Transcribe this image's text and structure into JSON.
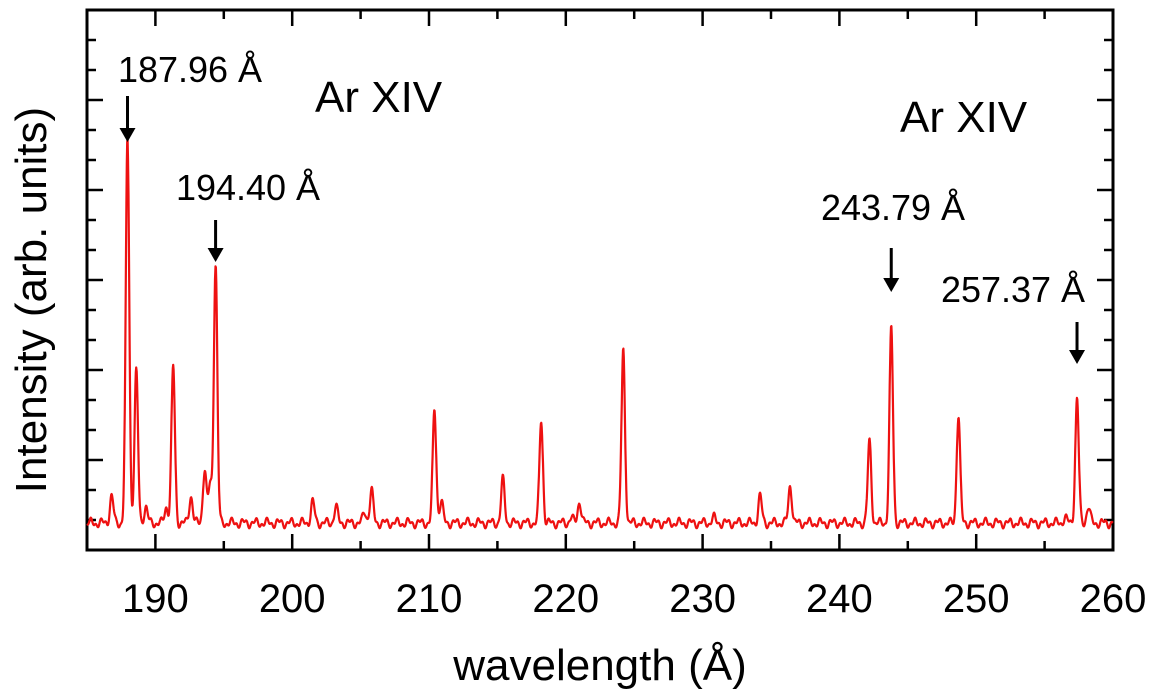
{
  "chart_data": {
    "type": "line",
    "title": "",
    "xlabel": "wavelength (Å)",
    "ylabel": "Intensity (arb. units)",
    "xlim": [
      185,
      260
    ],
    "ylim": [
      0,
      1
    ],
    "x_ticks": [
      190,
      200,
      210,
      220,
      230,
      240,
      250,
      260
    ],
    "x_tick_labels": [
      "190",
      "200",
      "210",
      "220",
      "230",
      "240",
      "250",
      "260"
    ],
    "y_tick_labels_shown": false,
    "grid": false,
    "legend": "none",
    "series": [
      {
        "color": "#ee1111",
        "baseline": 0.05,
        "peaks": [
          {
            "x": 186.8,
            "y": 0.1
          },
          {
            "x": 187.96,
            "y": 0.76
          },
          {
            "x": 188.6,
            "y": 0.33
          },
          {
            "x": 189.3,
            "y": 0.08
          },
          {
            "x": 190.8,
            "y": 0.08
          },
          {
            "x": 191.3,
            "y": 0.34
          },
          {
            "x": 192.6,
            "y": 0.1
          },
          {
            "x": 193.6,
            "y": 0.15
          },
          {
            "x": 194.0,
            "y": 0.12
          },
          {
            "x": 194.4,
            "y": 0.53
          },
          {
            "x": 201.5,
            "y": 0.09
          },
          {
            "x": 203.2,
            "y": 0.08
          },
          {
            "x": 205.3,
            "y": 0.07
          },
          {
            "x": 205.8,
            "y": 0.11
          },
          {
            "x": 210.4,
            "y": 0.26
          },
          {
            "x": 210.9,
            "y": 0.09
          },
          {
            "x": 215.4,
            "y": 0.13
          },
          {
            "x": 218.2,
            "y": 0.24
          },
          {
            "x": 220.4,
            "y": 0.06
          },
          {
            "x": 221.0,
            "y": 0.09
          },
          {
            "x": 224.2,
            "y": 0.37
          },
          {
            "x": 230.8,
            "y": 0.06
          },
          {
            "x": 234.2,
            "y": 0.1
          },
          {
            "x": 236.4,
            "y": 0.12
          },
          {
            "x": 242.2,
            "y": 0.2
          },
          {
            "x": 243.79,
            "y": 0.41
          },
          {
            "x": 248.7,
            "y": 0.25
          },
          {
            "x": 256.5,
            "y": 0.06
          },
          {
            "x": 257.37,
            "y": 0.28
          },
          {
            "x": 258.2,
            "y": 0.08
          }
        ]
      }
    ],
    "annotations": [
      {
        "text": "187.96 Å",
        "x": 187.96
      },
      {
        "text": "194.40 Å",
        "x": 194.4
      },
      {
        "text": "243.79 Å",
        "x": 243.79
      },
      {
        "text": "257.37 Å",
        "x": 257.37
      }
    ],
    "ion_labels": [
      "Ar XIV",
      "Ar XIV"
    ]
  }
}
